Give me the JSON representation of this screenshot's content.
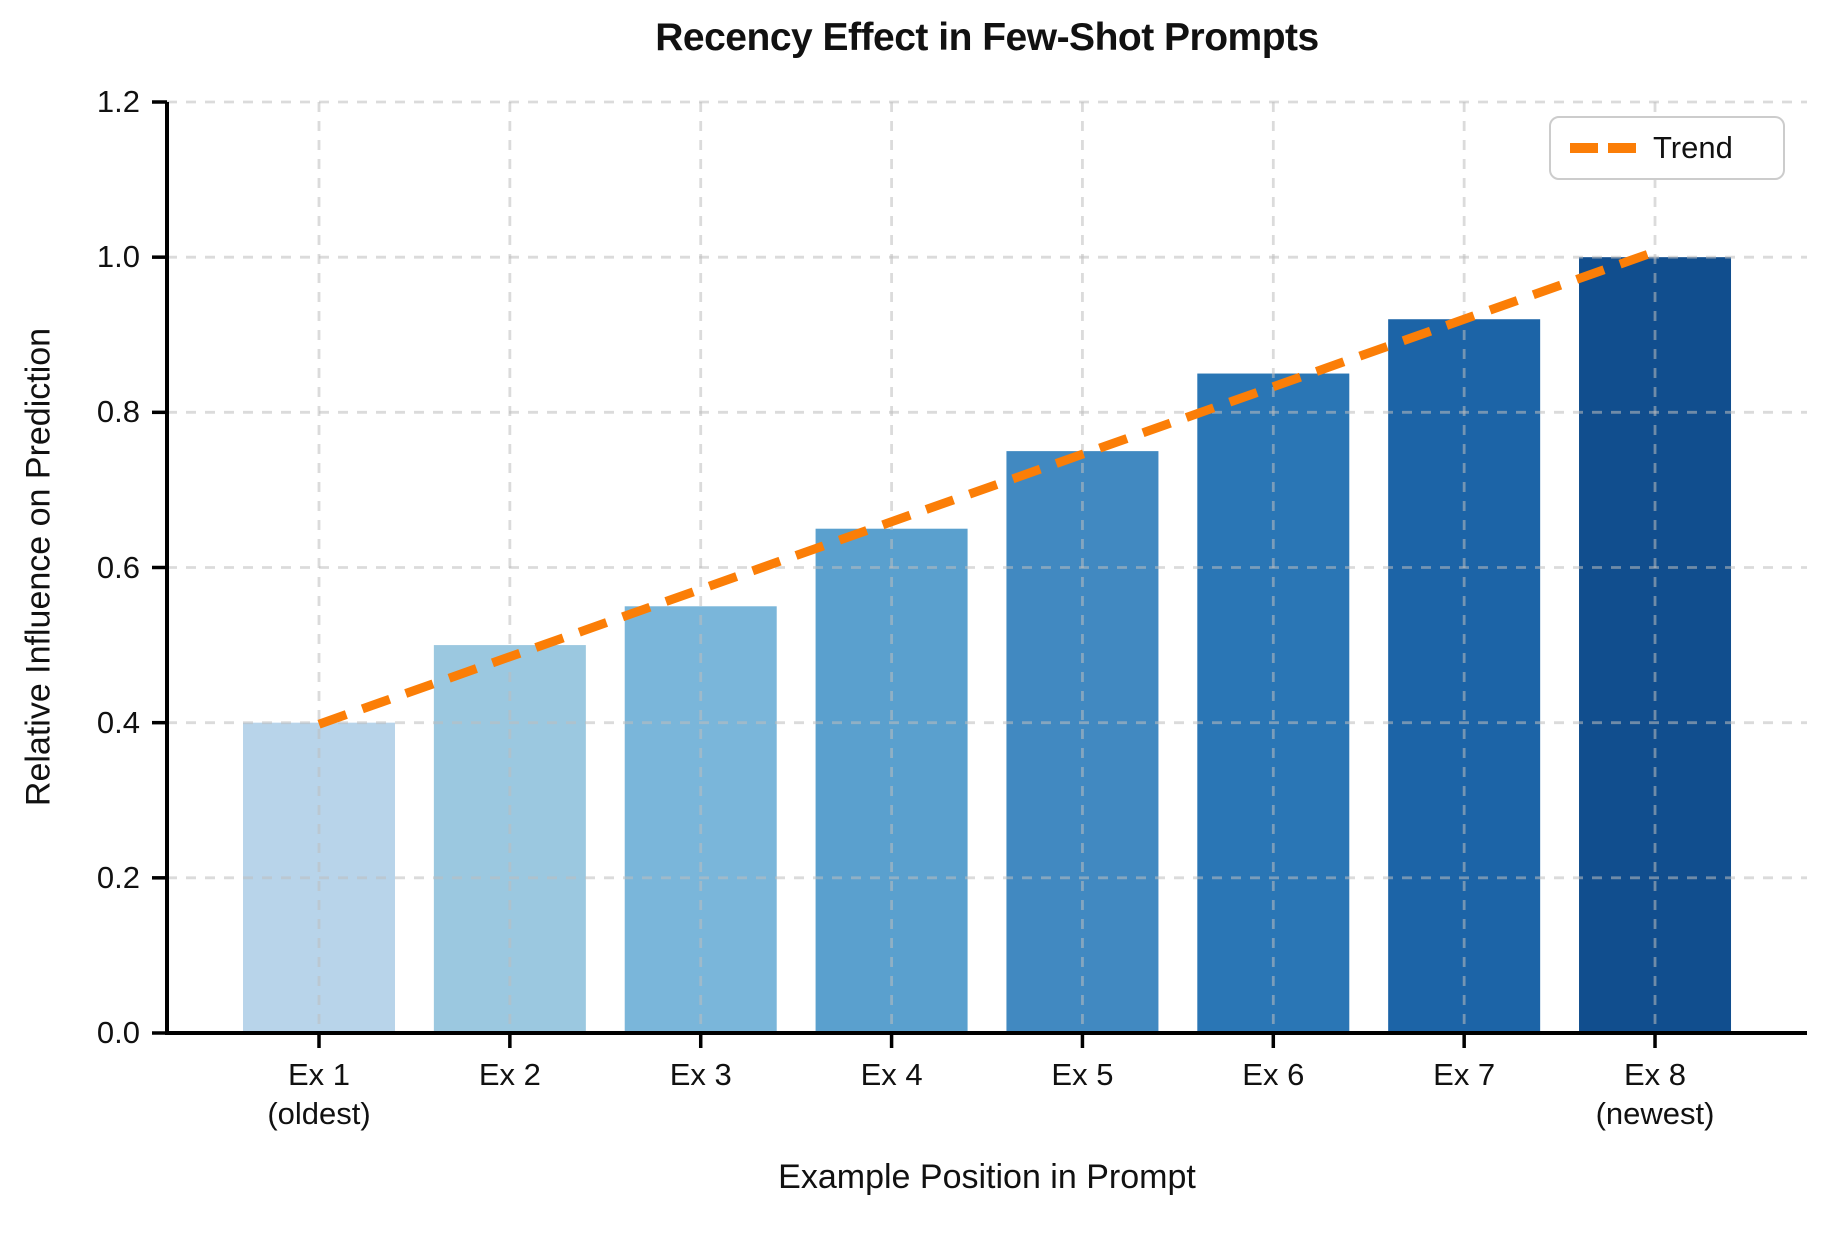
{
  "title": "Recency Effect in Few-Shot Prompts",
  "legend": {
    "label": "Trend",
    "position": "upper right"
  },
  "colors": {
    "trend": "#fb7e07",
    "grid": "#d9d9d9",
    "axis": "#000000",
    "text": "#111111",
    "background": "#ffffff"
  },
  "chart_data": {
    "type": "bar",
    "title": "Recency Effect in Few-Shot Prompts",
    "xlabel": "Example Position in Prompt",
    "ylabel": "Relative Influence on Prediction",
    "categories": [
      "Ex 1\n(oldest)",
      "Ex 2",
      "Ex 3",
      "Ex 4",
      "Ex 5",
      "Ex 6",
      "Ex 7",
      "Ex 8\n(newest)"
    ],
    "values": [
      0.4,
      0.5,
      0.55,
      0.65,
      0.75,
      0.85,
      0.92,
      1.0
    ],
    "bar_colors": [
      "#b8d4ea",
      "#9bc8e0",
      "#7ab6da",
      "#5aa0ce",
      "#4189c1",
      "#2a76b5",
      "#1c64a7",
      "#114e8e"
    ],
    "ylim": [
      0.0,
      1.2
    ],
    "yticks": [
      0.0,
      0.2,
      0.4,
      0.6,
      0.8,
      1.0,
      1.2
    ],
    "ytick_labels": [
      "0.0",
      "0.2",
      "0.4",
      "0.6",
      "0.8",
      "1.0",
      "1.2"
    ],
    "grid": true,
    "grid_style": "dashed",
    "legend": {
      "label": "Trend",
      "position": "upper right"
    },
    "series": [
      {
        "name": "Trend",
        "type": "line",
        "style": "dashed",
        "color": "#fb7e07",
        "x": [
          1,
          8
        ],
        "y": [
          0.398,
          1.007
        ]
      }
    ]
  }
}
